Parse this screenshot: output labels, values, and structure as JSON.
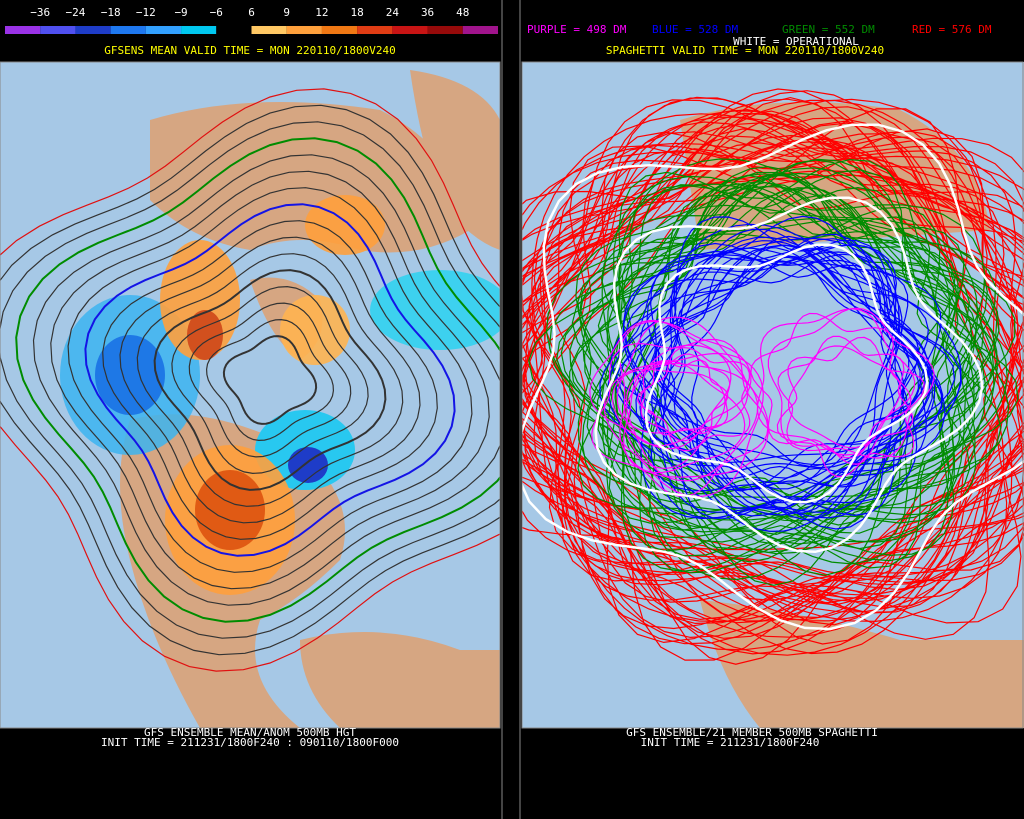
{
  "left_panel": {
    "scale": {
      "labels": [
        "−36",
        "−24",
        "−18",
        "−12",
        "−9",
        "−6",
        "6",
        "9",
        "12",
        "18",
        "24",
        "36",
        "48"
      ],
      "colors": [
        "#9a32e6",
        "#5050f0",
        "#1e3cc8",
        "#1e78f0",
        "#32a0ff",
        "#00c8f0",
        "#000000",
        "#ffc864",
        "#ffa03c",
        "#f07814",
        "#e03c14",
        "#c81414",
        "#960a0a",
        "#a0148c"
      ]
    },
    "title": "GFSENS MEAN VALID TIME = MON 220110/1800V240",
    "footer": [
      "GFS ENSEMBLE MEAN/ANOM 500MB HGT",
      "INIT TIME = 211231/1800F240 : 090110/1800F000"
    ]
  },
  "right_panel": {
    "legend": [
      {
        "label": "PURPLE = 498 DM",
        "color": "#ff00ff"
      },
      {
        "label": "BLUE = 528 DM",
        "color": "#0000ff"
      },
      {
        "label": "GREEN = 552 DM",
        "color": "#008c00"
      },
      {
        "label": "RED = 576 DM",
        "color": "#ff0000"
      }
    ],
    "operational": {
      "label": "WHITE = OPERATIONAL",
      "color": "#ffffff"
    },
    "title": "SPAGHETTI VALID TIME = MON 220110/1800V240",
    "footer": [
      "GFS ENSEMBLE/21 MEMBER 500MB SPAGHETTI",
      "INIT TIME = 211231/1800F240"
    ]
  }
}
